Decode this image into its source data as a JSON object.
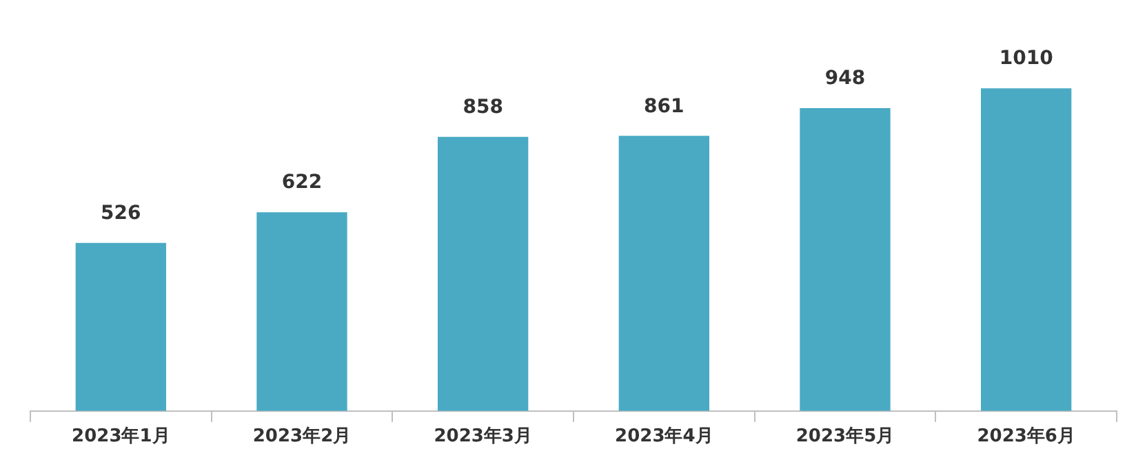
{
  "chart_data": {
    "type": "bar",
    "categories": [
      "2023年1月",
      "2023年2月",
      "2023年3月",
      "2023年4月",
      "2023年5月",
      "2023年6月"
    ],
    "values": [
      526,
      622,
      858,
      861,
      948,
      1010
    ],
    "color": "#4aaac4",
    "data_labels": true,
    "grid": false,
    "legend": false
  }
}
